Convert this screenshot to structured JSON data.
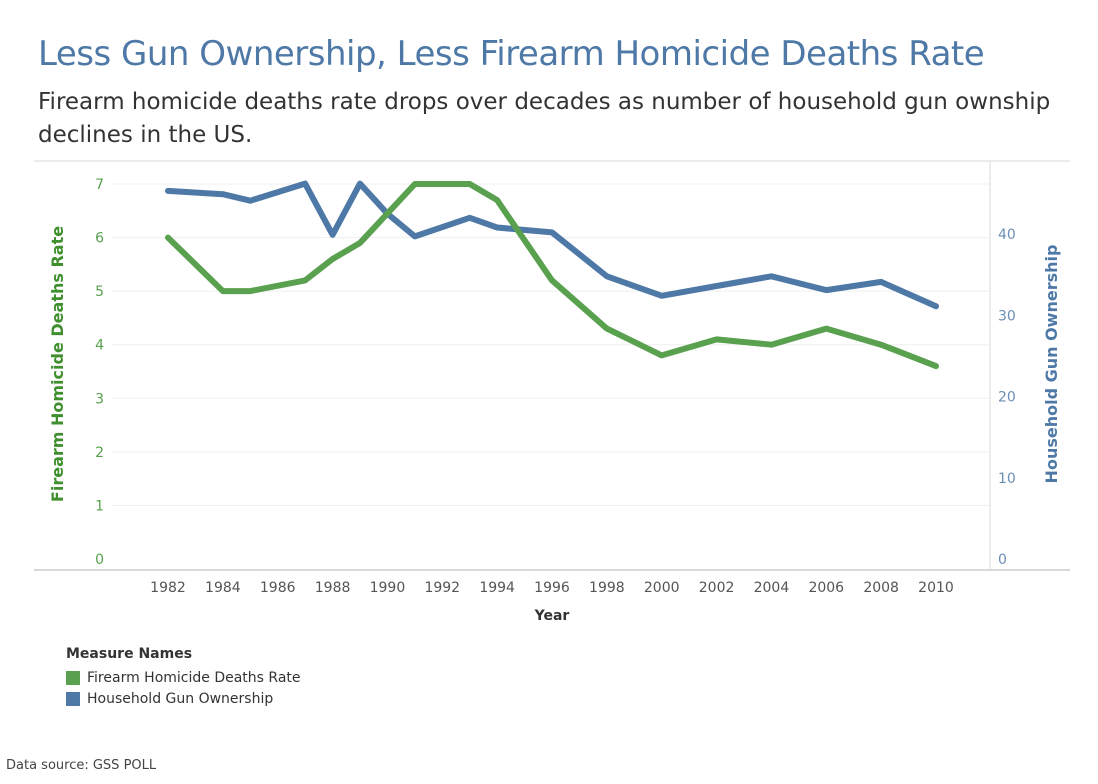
{
  "header": {
    "title": "Less Gun Ownership, Less Firearm Homicide Deaths Rate",
    "subtitle": "Firearm homicide deaths rate drops over decades as number of household gun ownship declines in the US."
  },
  "legend": {
    "title": "Measure Names",
    "items": [
      {
        "label": "Firearm Homicide Deaths Rate",
        "color": "#59a14f"
      },
      {
        "label": "Household Gun Ownership",
        "color": "#4e79a7"
      }
    ]
  },
  "footer": {
    "source": "Data source: GSS POLL"
  },
  "chart_data": {
    "type": "line",
    "title": "Less Gun Ownership, Less Firearm Homicide Deaths Rate",
    "xlabel": "Year",
    "ylabel_left": "Firearm Homicide Deaths Rate",
    "ylabel_right": "Household Gun Ownership",
    "xlim": [
      1980,
      2012
    ],
    "x_ticks": [
      1982,
      1984,
      1986,
      1988,
      1990,
      1992,
      1994,
      1996,
      1998,
      2000,
      2002,
      2004,
      2006,
      2008,
      2010
    ],
    "ylim_left": [
      0,
      7.4
    ],
    "y_ticks_left": [
      0,
      1,
      2,
      3,
      4,
      5,
      6,
      7
    ],
    "ylim_right": [
      0,
      48
    ],
    "y_ticks_right": [
      0,
      10,
      20,
      30,
      40
    ],
    "grid": true,
    "legend_position": "bottom-left",
    "series": [
      {
        "name": "Firearm Homicide Deaths Rate",
        "axis": "left",
        "color": "#59a14f",
        "x": [
          1982,
          1984,
          1985,
          1987,
          1988,
          1989,
          1991,
          1993,
          1994,
          1996,
          1998,
          2000,
          2002,
          2004,
          2006,
          2008,
          2010
        ],
        "y": [
          6.0,
          5.0,
          5.0,
          5.2,
          5.6,
          5.9,
          7.0,
          7.0,
          6.7,
          5.2,
          4.3,
          3.8,
          4.1,
          4.0,
          4.3,
          4.0,
          3.6
        ]
      },
      {
        "name": "Household Gun Ownership",
        "axis": "right",
        "color": "#4e79a7",
        "x": [
          1982,
          1984,
          1985,
          1987,
          1988,
          1989,
          1990,
          1991,
          1993,
          1994,
          1996,
          1998,
          2000,
          2002,
          2004,
          2006,
          2008,
          2010
        ],
        "y": [
          45.3,
          44.9,
          44.1,
          46.2,
          39.9,
          46.2,
          42.5,
          39.7,
          42.0,
          40.8,
          40.2,
          34.8,
          32.4,
          33.6,
          34.8,
          33.1,
          34.1,
          31.1
        ]
      }
    ]
  }
}
